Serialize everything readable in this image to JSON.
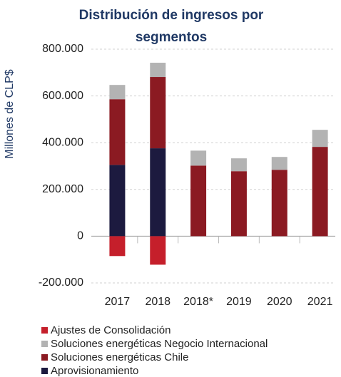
{
  "chart_data": {
    "type": "stacked_bar",
    "title": "Distribución de ingresos por segmentos",
    "y_label": "Millones de CLP$",
    "categories": [
      "2017",
      "2018",
      "2018*",
      "2019",
      "2020",
      "2021"
    ],
    "series": [
      {
        "name": "Aprovisionamiento",
        "color": "#1c1a3f",
        "values": [
          305000,
          376000,
          0,
          0,
          0,
          0
        ]
      },
      {
        "name": "Soluciones energéticas Chile",
        "color": "#8b1a22",
        "values": [
          281000,
          305000,
          302000,
          278000,
          284000,
          382000
        ]
      },
      {
        "name": "Soluciones energéticas Negocio Internacional",
        "color": "#b3b3b3",
        "values": [
          61000,
          61000,
          64000,
          55000,
          55000,
          73000
        ]
      },
      {
        "name": "Ajustes de Consolidación",
        "color": "#c51f2b",
        "values": [
          -85000,
          -122000,
          0,
          0,
          0,
          0
        ]
      }
    ],
    "ylim": [
      -200000,
      800000
    ],
    "yticks": [
      {
        "value": -200000,
        "label": "-200.000"
      },
      0,
      {
        "value": 200000,
        "label": "200.000"
      },
      {
        "value": 400000,
        "label": "400.000"
      },
      {
        "value": 600000,
        "label": "600.000"
      },
      {
        "value": 800000,
        "label": "800.000"
      }
    ],
    "grid": true,
    "legend": "bottom"
  }
}
